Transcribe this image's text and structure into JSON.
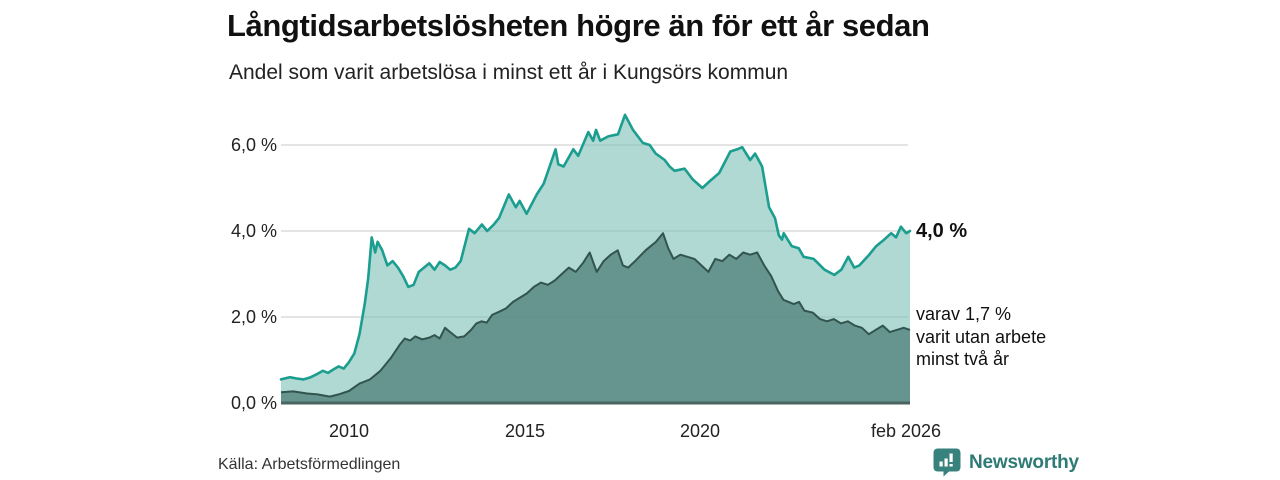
{
  "header": {
    "title": "Långtidsarbetslösheten högre än för ett år sedan",
    "subtitle": "Andel som varit arbetslösa i minst ett år i Kungsörs kommun"
  },
  "annotations": {
    "latest_total": "4,0 %",
    "secondary_lines": [
      "varav 1,7 %",
      "varit utan arbete",
      "minst två år"
    ]
  },
  "footer": {
    "source": "Källa: Arbetsförmedlingen",
    "brand_name": "Newsworthy",
    "brand_color": "#2e7a74"
  },
  "chart_data": {
    "type": "area",
    "title": "Långtidsarbetslösheten högre än för ett år sedan",
    "subtitle": "Andel som varit arbetslösa i minst ett år i Kungsörs kommun",
    "grid": "horizontal",
    "legend_position": "none",
    "x_domain": [
      2008.05,
      2026.08
    ],
    "ylim": [
      0,
      6.8
    ],
    "yticks": [
      {
        "v": 6,
        "label": "6,0 %"
      },
      {
        "v": 4,
        "label": "4,0 %"
      },
      {
        "v": 2,
        "label": "2,0 %"
      },
      {
        "v": 0,
        "label": "0,0 %"
      }
    ],
    "xticks": [
      {
        "v": 2010,
        "label": "2010"
      },
      {
        "v": 2015,
        "label": "2015"
      },
      {
        "v": 2020,
        "label": "2020"
      },
      {
        "v": 2026.08,
        "label": "feb 2026"
      }
    ],
    "colors": {
      "line_one_year": "#1b9e8f",
      "fill_one_year": "rgba(120,190,180,0.58)",
      "line_two_years": "#32544f",
      "fill_two_years": "rgba(85,135,128,0.83)",
      "gridline": "#c9c9c9",
      "baseline": "#4a6561"
    },
    "series": [
      {
        "name": "Andel arbetslösa minst ett år",
        "unit": "%",
        "points": [
          [
            2008.05,
            0.55
          ],
          [
            2008.3,
            0.6
          ],
          [
            2008.5,
            0.57
          ],
          [
            2008.7,
            0.55
          ],
          [
            2008.9,
            0.6
          ],
          [
            2009.1,
            0.68
          ],
          [
            2009.25,
            0.75
          ],
          [
            2009.4,
            0.7
          ],
          [
            2009.55,
            0.78
          ],
          [
            2009.7,
            0.85
          ],
          [
            2009.85,
            0.8
          ],
          [
            2010.0,
            0.95
          ],
          [
            2010.15,
            1.15
          ],
          [
            2010.3,
            1.6
          ],
          [
            2010.45,
            2.3
          ],
          [
            2010.55,
            2.9
          ],
          [
            2010.65,
            3.85
          ],
          [
            2010.75,
            3.5
          ],
          [
            2010.82,
            3.75
          ],
          [
            2010.95,
            3.55
          ],
          [
            2011.1,
            3.2
          ],
          [
            2011.25,
            3.3
          ],
          [
            2011.4,
            3.15
          ],
          [
            2011.55,
            2.95
          ],
          [
            2011.7,
            2.7
          ],
          [
            2011.85,
            2.75
          ],
          [
            2012.0,
            3.05
          ],
          [
            2012.15,
            3.15
          ],
          [
            2012.3,
            3.25
          ],
          [
            2012.45,
            3.1
          ],
          [
            2012.6,
            3.28
          ],
          [
            2012.75,
            3.2
          ],
          [
            2012.9,
            3.1
          ],
          [
            2013.05,
            3.15
          ],
          [
            2013.2,
            3.3
          ],
          [
            2013.44,
            4.05
          ],
          [
            2013.6,
            3.95
          ],
          [
            2013.81,
            4.15
          ],
          [
            2013.96,
            4.0
          ],
          [
            2014.15,
            4.15
          ],
          [
            2014.3,
            4.3
          ],
          [
            2014.58,
            4.85
          ],
          [
            2014.78,
            4.55
          ],
          [
            2014.89,
            4.7
          ],
          [
            2015.09,
            4.4
          ],
          [
            2015.38,
            4.85
          ],
          [
            2015.58,
            5.1
          ],
          [
            2015.92,
            5.9
          ],
          [
            2016.0,
            5.55
          ],
          [
            2016.15,
            5.5
          ],
          [
            2016.43,
            5.9
          ],
          [
            2016.57,
            5.75
          ],
          [
            2016.86,
            6.3
          ],
          [
            2017.0,
            6.1
          ],
          [
            2017.08,
            6.35
          ],
          [
            2017.2,
            6.1
          ],
          [
            2017.43,
            6.2
          ],
          [
            2017.71,
            6.25
          ],
          [
            2017.91,
            6.7
          ],
          [
            2018.14,
            6.35
          ],
          [
            2018.28,
            6.2
          ],
          [
            2018.42,
            6.05
          ],
          [
            2018.62,
            6.0
          ],
          [
            2018.79,
            5.8
          ],
          [
            2019.05,
            5.65
          ],
          [
            2019.19,
            5.5
          ],
          [
            2019.33,
            5.4
          ],
          [
            2019.62,
            5.45
          ],
          [
            2019.85,
            5.2
          ],
          [
            2020.13,
            5.0
          ],
          [
            2020.33,
            5.15
          ],
          [
            2020.61,
            5.35
          ],
          [
            2020.93,
            5.85
          ],
          [
            2021.13,
            5.9
          ],
          [
            2021.27,
            5.95
          ],
          [
            2021.5,
            5.65
          ],
          [
            2021.64,
            5.8
          ],
          [
            2021.84,
            5.5
          ],
          [
            2022.04,
            4.55
          ],
          [
            2022.21,
            4.3
          ],
          [
            2022.32,
            3.9
          ],
          [
            2022.41,
            3.8
          ],
          [
            2022.46,
            3.95
          ],
          [
            2022.69,
            3.65
          ],
          [
            2022.89,
            3.6
          ],
          [
            2023.03,
            3.4
          ],
          [
            2023.32,
            3.35
          ],
          [
            2023.63,
            3.1
          ],
          [
            2023.91,
            2.98
          ],
          [
            2024.11,
            3.1
          ],
          [
            2024.31,
            3.4
          ],
          [
            2024.48,
            3.15
          ],
          [
            2024.63,
            3.2
          ],
          [
            2024.91,
            3.45
          ],
          [
            2025.11,
            3.65
          ],
          [
            2025.34,
            3.8
          ],
          [
            2025.54,
            3.95
          ],
          [
            2025.68,
            3.85
          ],
          [
            2025.82,
            4.1
          ],
          [
            2025.97,
            3.95
          ],
          [
            2026.08,
            4.0
          ]
        ],
        "last_value_label": "4,0 %"
      },
      {
        "name": "varav arbetslösa minst två år",
        "unit": "%",
        "points": [
          [
            2008.05,
            0.25
          ],
          [
            2008.4,
            0.27
          ],
          [
            2008.8,
            0.22
          ],
          [
            2009.1,
            0.2
          ],
          [
            2009.45,
            0.15
          ],
          [
            2009.7,
            0.2
          ],
          [
            2010.0,
            0.28
          ],
          [
            2010.3,
            0.45
          ],
          [
            2010.6,
            0.55
          ],
          [
            2010.9,
            0.75
          ],
          [
            2011.2,
            1.05
          ],
          [
            2011.45,
            1.35
          ],
          [
            2011.6,
            1.5
          ],
          [
            2011.75,
            1.45
          ],
          [
            2011.9,
            1.55
          ],
          [
            2012.1,
            1.48
          ],
          [
            2012.3,
            1.52
          ],
          [
            2012.45,
            1.58
          ],
          [
            2012.6,
            1.5
          ],
          [
            2012.75,
            1.75
          ],
          [
            2012.9,
            1.65
          ],
          [
            2013.1,
            1.52
          ],
          [
            2013.3,
            1.55
          ],
          [
            2013.5,
            1.7
          ],
          [
            2013.65,
            1.85
          ],
          [
            2013.8,
            1.9
          ],
          [
            2013.95,
            1.87
          ],
          [
            2014.1,
            2.05
          ],
          [
            2014.3,
            2.12
          ],
          [
            2014.5,
            2.2
          ],
          [
            2014.7,
            2.35
          ],
          [
            2014.9,
            2.45
          ],
          [
            2015.1,
            2.55
          ],
          [
            2015.3,
            2.7
          ],
          [
            2015.5,
            2.8
          ],
          [
            2015.7,
            2.75
          ],
          [
            2015.9,
            2.85
          ],
          [
            2016.1,
            3.0
          ],
          [
            2016.3,
            3.15
          ],
          [
            2016.5,
            3.05
          ],
          [
            2016.7,
            3.25
          ],
          [
            2016.9,
            3.5
          ],
          [
            2017.1,
            3.05
          ],
          [
            2017.3,
            3.3
          ],
          [
            2017.5,
            3.45
          ],
          [
            2017.7,
            3.55
          ],
          [
            2017.85,
            3.2
          ],
          [
            2018.0,
            3.15
          ],
          [
            2018.2,
            3.3
          ],
          [
            2018.5,
            3.55
          ],
          [
            2018.8,
            3.75
          ],
          [
            2019.0,
            3.95
          ],
          [
            2019.15,
            3.6
          ],
          [
            2019.3,
            3.35
          ],
          [
            2019.5,
            3.45
          ],
          [
            2019.7,
            3.4
          ],
          [
            2019.9,
            3.35
          ],
          [
            2020.1,
            3.2
          ],
          [
            2020.3,
            3.05
          ],
          [
            2020.5,
            3.35
          ],
          [
            2020.7,
            3.3
          ],
          [
            2020.9,
            3.45
          ],
          [
            2021.1,
            3.35
          ],
          [
            2021.3,
            3.5
          ],
          [
            2021.5,
            3.45
          ],
          [
            2021.7,
            3.5
          ],
          [
            2021.9,
            3.2
          ],
          [
            2022.1,
            2.95
          ],
          [
            2022.3,
            2.6
          ],
          [
            2022.45,
            2.4
          ],
          [
            2022.6,
            2.35
          ],
          [
            2022.75,
            2.3
          ],
          [
            2022.9,
            2.35
          ],
          [
            2023.05,
            2.15
          ],
          [
            2023.3,
            2.1
          ],
          [
            2023.5,
            1.95
          ],
          [
            2023.7,
            1.9
          ],
          [
            2023.9,
            1.95
          ],
          [
            2024.1,
            1.85
          ],
          [
            2024.3,
            1.9
          ],
          [
            2024.5,
            1.8
          ],
          [
            2024.7,
            1.75
          ],
          [
            2024.9,
            1.6
          ],
          [
            2025.1,
            1.7
          ],
          [
            2025.3,
            1.8
          ],
          [
            2025.5,
            1.65
          ],
          [
            2025.7,
            1.7
          ],
          [
            2025.9,
            1.75
          ],
          [
            2026.08,
            1.7
          ]
        ],
        "last_value_label": "varav 1,7 % varit utan arbete minst två år"
      }
    ]
  }
}
